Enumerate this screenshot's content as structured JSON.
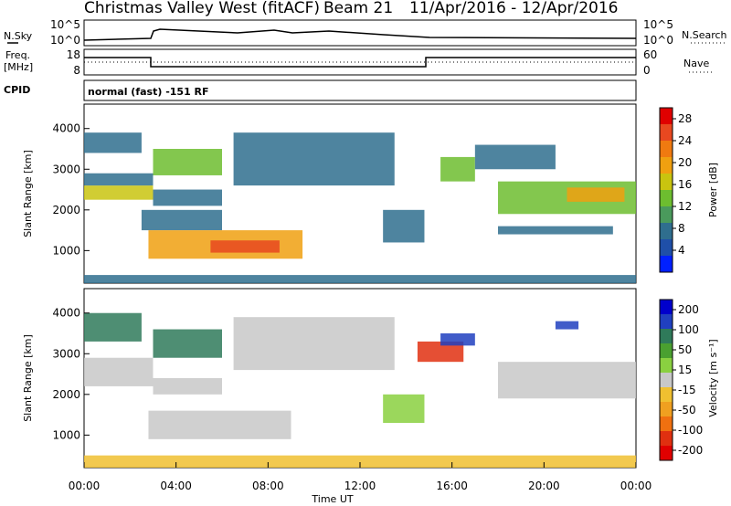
{
  "header": {
    "station": "Christmas Valley West (fitACF)",
    "beam": "Beam 21",
    "date_range": "11/Apr/2016 - 12/Apr/2016"
  },
  "panels": {
    "nsky_label": "N.Sky",
    "nsearch_label": "N.Search",
    "freq_label_1": "Freq.",
    "freq_label_2": "[MHz]",
    "nave_label": "Nave",
    "cpid_label": "CPID",
    "cpid_value": "normal (fast) -151 RF",
    "noise_left_ticks": [
      "10^5",
      "10^0"
    ],
    "noise_right_ticks": [
      "10^5",
      "10^0"
    ],
    "freq_ticks": [
      "18",
      "8"
    ],
    "nave_ticks": [
      "60",
      "0"
    ]
  },
  "chart_data": [
    {
      "type": "heatmap",
      "name": "power",
      "ylabel": "Slant Range [km]",
      "yticks": [
        1000,
        2000,
        3000,
        4000
      ],
      "ylim": [
        200,
        4600
      ],
      "xlim": [
        0,
        24
      ],
      "colorbar": {
        "label": "Power [dB]",
        "ticks": [
          4,
          8,
          12,
          16,
          20,
          24,
          28
        ],
        "colors": [
          "#0020ff",
          "#1f4fa8",
          "#2f6e8e",
          "#4a9a5c",
          "#6dbd2f",
          "#c9c40f",
          "#f0a010",
          "#f07a10",
          "#e84820",
          "#e00000"
        ]
      },
      "regions": [
        {
          "t0": 0.0,
          "t1": 3.0,
          "r0": 2250,
          "r1": 2600,
          "level": 16
        },
        {
          "t0": 0.0,
          "t1": 3.0,
          "r0": 2600,
          "r1": 2900,
          "level": 8
        },
        {
          "t0": 0.0,
          "t1": 2.5,
          "r0": 3400,
          "r1": 3900,
          "level": 8
        },
        {
          "t0": 3.0,
          "t1": 6.0,
          "r0": 2850,
          "r1": 3500,
          "level": 14
        },
        {
          "t0": 3.0,
          "t1": 6.0,
          "r0": 2100,
          "r1": 2500,
          "level": 6
        },
        {
          "t0": 2.5,
          "t1": 6.0,
          "r0": 1500,
          "r1": 2000,
          "level": 6
        },
        {
          "t0": 2.8,
          "t1": 9.5,
          "r0": 800,
          "r1": 1500,
          "level": 18
        },
        {
          "t0": 5.5,
          "t1": 8.5,
          "r0": 950,
          "r1": 1250,
          "level": 24
        },
        {
          "t0": 6.5,
          "t1": 13.5,
          "r0": 2600,
          "r1": 3900,
          "level": 6
        },
        {
          "t0": 13.0,
          "t1": 14.8,
          "r0": 1200,
          "r1": 2000,
          "level": 6
        },
        {
          "t0": 15.5,
          "t1": 17.0,
          "r0": 2700,
          "r1": 3300,
          "level": 12
        },
        {
          "t0": 17.0,
          "t1": 20.5,
          "r0": 3000,
          "r1": 3600,
          "level": 6
        },
        {
          "t0": 18.0,
          "t1": 24.0,
          "r0": 1900,
          "r1": 2700,
          "level": 14
        },
        {
          "t0": 21.0,
          "t1": 23.5,
          "r0": 2200,
          "r1": 2550,
          "level": 20
        },
        {
          "t0": 18.0,
          "t1": 23.0,
          "r0": 1400,
          "r1": 1600,
          "level": 6
        },
        {
          "t0": 0.0,
          "t1": 24.0,
          "r0": 200,
          "r1": 400,
          "level": 6
        }
      ]
    },
    {
      "type": "heatmap",
      "name": "velocity",
      "ylabel": "Slant Range [km]",
      "xlabel": "Time UT",
      "yticks": [
        1000,
        2000,
        3000,
        4000
      ],
      "ylim": [
        200,
        4600
      ],
      "xlim": [
        0,
        24
      ],
      "xticks": [
        "00:00",
        "04:00",
        "08:00",
        "12:00",
        "16:00",
        "20:00",
        "00:00"
      ],
      "colorbar": {
        "label": "Velocity [m s⁻¹]",
        "ticks": [
          200,
          100,
          50,
          15,
          -15,
          -50,
          -100,
          -200
        ],
        "colors": [
          "#0000cc",
          "#2040c0",
          "#2f7a5a",
          "#4aa030",
          "#8ad040",
          "#c8c8c8",
          "#f0c030",
          "#f0a020",
          "#f07010",
          "#e03010",
          "#e00000"
        ]
      },
      "regions": [
        {
          "t0": 0.0,
          "t1": 3.0,
          "r0": 2200,
          "r1": 2900,
          "value": 0
        },
        {
          "t0": 0.0,
          "t1": 2.5,
          "r0": 3300,
          "r1": 4000,
          "value": 150
        },
        {
          "t0": 3.0,
          "t1": 6.0,
          "r0": 2900,
          "r1": 3600,
          "value": 120
        },
        {
          "t0": 3.0,
          "t1": 6.0,
          "r0": 2000,
          "r1": 2400,
          "value": 0
        },
        {
          "t0": 2.8,
          "t1": 9.0,
          "r0": 900,
          "r1": 1600,
          "value": 0
        },
        {
          "t0": 6.5,
          "t1": 13.5,
          "r0": 2600,
          "r1": 3900,
          "value": 0
        },
        {
          "t0": 13.0,
          "t1": 14.8,
          "r0": 1300,
          "r1": 2000,
          "value": 60
        },
        {
          "t0": 14.5,
          "t1": 16.5,
          "r0": 2800,
          "r1": 3300,
          "value": -180
        },
        {
          "t0": 15.5,
          "t1": 17.0,
          "r0": 3200,
          "r1": 3500,
          "value": 180
        },
        {
          "t0": 18.0,
          "t1": 24.0,
          "r0": 1900,
          "r1": 2800,
          "value": 0
        },
        {
          "t0": 20.5,
          "t1": 21.5,
          "r0": 3600,
          "r1": 3800,
          "value": 180
        },
        {
          "t0": 0.0,
          "t1": 24.0,
          "r0": 200,
          "r1": 500,
          "value": -40
        }
      ]
    }
  ]
}
